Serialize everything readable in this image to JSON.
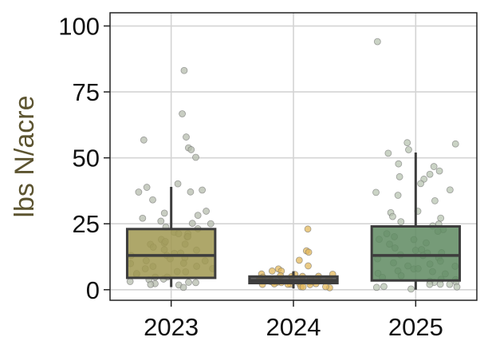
{
  "chart_data": {
    "type": "box",
    "title": "",
    "xlabel": "",
    "ylabel": "lbs N/acre",
    "ylim": [
      -4,
      105
    ],
    "yticks": [
      0,
      25,
      50,
      75,
      100
    ],
    "grid": true,
    "legend": "none",
    "colors": {
      "ylabel": "#5c5430",
      "grid": "#d4d4d4",
      "box_line": "#3d3d3d"
    },
    "categories": [
      "2023",
      "2024",
      "2025"
    ],
    "series": [
      {
        "category": "2023",
        "fill": "#a09850",
        "point_color": "#b5bcae",
        "whisker_low": 1,
        "q1": 4.5,
        "median": 13,
        "q3": 23,
        "whisker_high": 39,
        "points": [
          83,
          67,
          58,
          57,
          54,
          53,
          50,
          40,
          39,
          38,
          37,
          37,
          34,
          30,
          29,
          28,
          27,
          26,
          25,
          25,
          24,
          23,
          22,
          21,
          21,
          20,
          20,
          19,
          18,
          18,
          17,
          17,
          16,
          15,
          15,
          14,
          14,
          13,
          13,
          12,
          12,
          11,
          11,
          10,
          10,
          9,
          9,
          8,
          8,
          7,
          7,
          6,
          6,
          5,
          5,
          4,
          4,
          3,
          3,
          3,
          2,
          2,
          2,
          1
        ]
      },
      {
        "category": "2024",
        "fill": "#4a4a4a",
        "point_color": "#e3b85c",
        "whisker_low": 0.5,
        "q1": 2.5,
        "median": 3.5,
        "q3": 5,
        "whisker_high": 7,
        "points": [
          23,
          15,
          14,
          11,
          9,
          8,
          7,
          7,
          6,
          6,
          6,
          5,
          5,
          5,
          5,
          5,
          4,
          4,
          4,
          4,
          4,
          4,
          4,
          3,
          3,
          3,
          3,
          3,
          3,
          3,
          3,
          2,
          2,
          2,
          2,
          2,
          2,
          2,
          1,
          1,
          1,
          1
        ]
      },
      {
        "category": "2025",
        "fill": "#5e8a60",
        "point_color": "#b8c4b2",
        "whisker_low": 0,
        "q1": 3.5,
        "median": 13,
        "q3": 24,
        "whisker_high": 52,
        "points": [
          94,
          56,
          55,
          53,
          52,
          48,
          47,
          45,
          44,
          43,
          42,
          40,
          38,
          37,
          36,
          34,
          30,
          29,
          28,
          27,
          26,
          25,
          24,
          23,
          22,
          21,
          20,
          19,
          19,
          18,
          17,
          16,
          15,
          15,
          14,
          14,
          13,
          13,
          12,
          12,
          11,
          10,
          10,
          9,
          9,
          8,
          8,
          7,
          7,
          6,
          6,
          5,
          5,
          4,
          4,
          3,
          3,
          3,
          2,
          2,
          2,
          1,
          1,
          1,
          0
        ]
      }
    ]
  }
}
